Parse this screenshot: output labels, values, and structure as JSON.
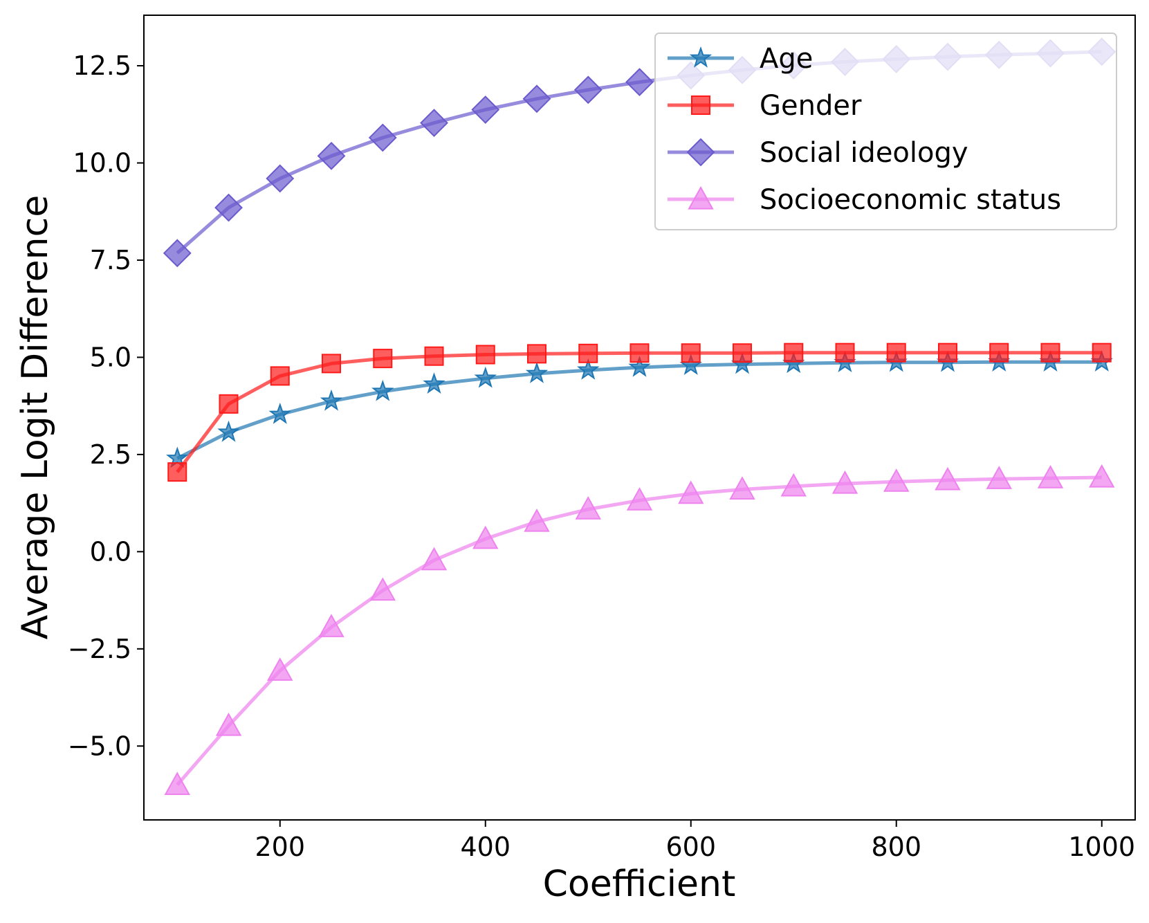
{
  "chart_data": {
    "type": "line",
    "title": "",
    "xlabel": "Coefficient",
    "ylabel": "Average Logit Difference",
    "xlim": [
      67.5,
      1032.5
    ],
    "ylim": [
      -6.9,
      13.8
    ],
    "xticks": [
      200,
      400,
      600,
      800,
      1000
    ],
    "xtick_labels": [
      "200",
      "400",
      "600",
      "800",
      "1000"
    ],
    "yticks": [
      -5.0,
      -2.5,
      0.0,
      2.5,
      5.0,
      7.5,
      10.0,
      12.5
    ],
    "ytick_labels": [
      "−5.0",
      "−2.5",
      "0.0",
      "2.5",
      "5.0",
      "7.5",
      "10.0",
      "12.5"
    ],
    "grid": false,
    "legend_position": "top-right",
    "x": [
      100,
      150,
      200,
      250,
      300,
      350,
      400,
      450,
      500,
      550,
      600,
      650,
      700,
      750,
      800,
      850,
      900,
      950,
      1000
    ],
    "series": [
      {
        "name": "Age",
        "color": "#1f77b4",
        "marker": "star",
        "values": [
          2.4,
          3.07,
          3.53,
          3.87,
          4.12,
          4.31,
          4.46,
          4.58,
          4.67,
          4.74,
          4.79,
          4.82,
          4.84,
          4.86,
          4.87,
          4.87,
          4.88,
          4.88,
          4.88
        ]
      },
      {
        "name": "Gender",
        "color": "#ff1a1a",
        "marker": "square",
        "values": [
          2.05,
          3.8,
          4.52,
          4.84,
          4.97,
          5.03,
          5.07,
          5.09,
          5.1,
          5.11,
          5.11,
          5.11,
          5.12,
          5.12,
          5.12,
          5.12,
          5.12,
          5.12,
          5.12
        ]
      },
      {
        "name": "Social ideology",
        "color": "#6a5acd",
        "marker": "diamond",
        "values": [
          7.68,
          8.85,
          9.6,
          10.18,
          10.65,
          11.03,
          11.37,
          11.65,
          11.88,
          12.08,
          12.25,
          12.39,
          12.51,
          12.6,
          12.67,
          12.73,
          12.78,
          12.82,
          12.86
        ]
      },
      {
        "name": "Socioeconomic status",
        "color": "#ee82ee",
        "marker": "triangle",
        "values": [
          -6.0,
          -4.48,
          -3.06,
          -1.94,
          -1.0,
          -0.22,
          0.33,
          0.77,
          1.09,
          1.32,
          1.49,
          1.6,
          1.68,
          1.75,
          1.8,
          1.84,
          1.87,
          1.89,
          1.91
        ]
      }
    ]
  }
}
